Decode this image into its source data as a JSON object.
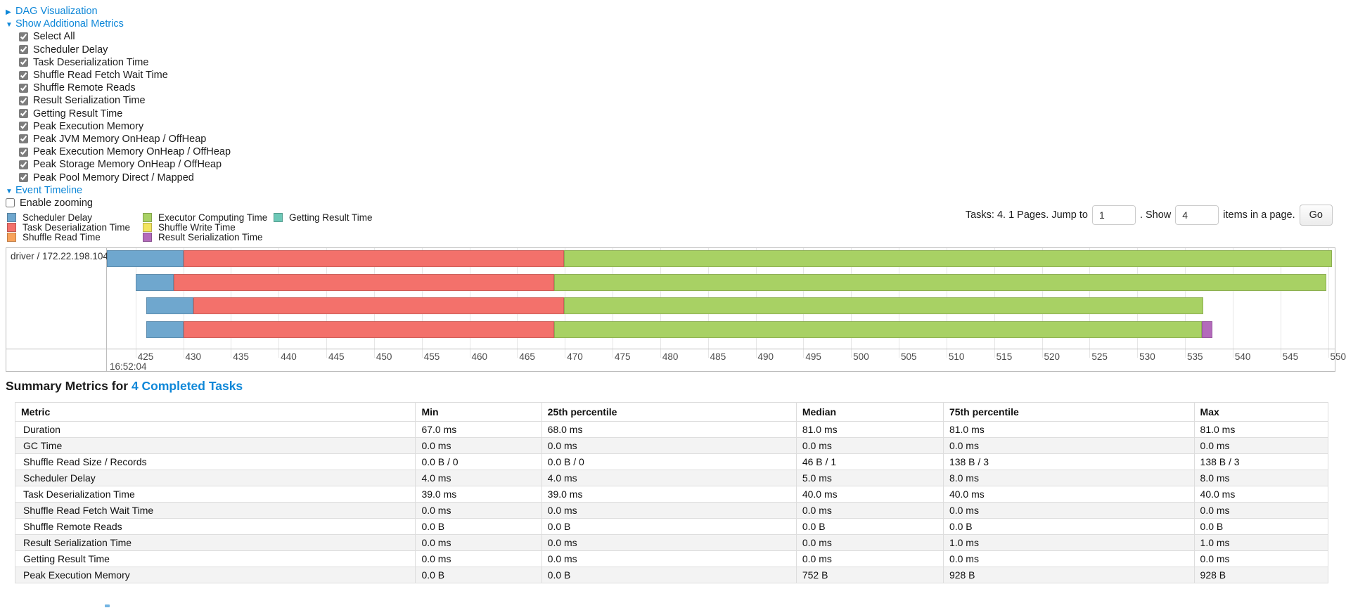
{
  "controls": {
    "dag": {
      "label": "DAG Visualization",
      "state": "collapsed"
    },
    "show_metrics": {
      "label": "Show Additional Metrics",
      "state": "expanded"
    },
    "metric_checkboxes": [
      {
        "label": "Select All",
        "checked": true
      },
      {
        "label": "Scheduler Delay",
        "checked": true
      },
      {
        "label": "Task Deserialization Time",
        "checked": true
      },
      {
        "label": "Shuffle Read Fetch Wait Time",
        "checked": true
      },
      {
        "label": "Shuffle Remote Reads",
        "checked": true
      },
      {
        "label": "Result Serialization Time",
        "checked": true
      },
      {
        "label": "Getting Result Time",
        "checked": true
      },
      {
        "label": "Peak Execution Memory",
        "checked": true
      },
      {
        "label": "Peak JVM Memory OnHeap / OffHeap",
        "checked": true
      },
      {
        "label": "Peak Execution Memory OnHeap / OffHeap",
        "checked": true
      },
      {
        "label": "Peak Storage Memory OnHeap / OffHeap",
        "checked": true
      },
      {
        "label": "Peak Pool Memory Direct / Mapped",
        "checked": true
      }
    ],
    "event_timeline": {
      "label": "Event Timeline",
      "state": "expanded"
    },
    "enable_zooming": {
      "label": "Enable zooming",
      "checked": false
    }
  },
  "legend": {
    "col1": [
      {
        "label": "Scheduler Delay",
        "color": "#6FA7CE"
      },
      {
        "label": "Task Deserialization Time",
        "color": "#F3716B"
      },
      {
        "label": "Shuffle Read Time",
        "color": "#F8A25A"
      }
    ],
    "col2": [
      {
        "label": "Executor Computing Time",
        "color": "#A8D164"
      },
      {
        "label": "Shuffle Write Time",
        "color": "#F3E55F"
      },
      {
        "label": "Result Serialization Time",
        "color": "#B36ABB"
      }
    ],
    "col3": [
      {
        "label": "Getting Result Time",
        "color": "#6DC8B7"
      }
    ]
  },
  "pagination": {
    "summary": "Tasks: 4. 1 Pages. Jump to",
    "jump_value": "1",
    "mid_label": ". Show",
    "show_value": "4",
    "suffix_label": "items in a page.",
    "go_label": "Go"
  },
  "chart_data": {
    "type": "timeline",
    "row_label": "driver / 172.22.198.104",
    "x_axis": {
      "window": [
        422.0,
        550.7
      ],
      "ticks": [
        425,
        430,
        435,
        440,
        445,
        450,
        455,
        460,
        465,
        470,
        475,
        480,
        485,
        490,
        495,
        500,
        505,
        510,
        515,
        520,
        525,
        530,
        535,
        540,
        545,
        550
      ],
      "major_label": "16:52:04",
      "units": "milliseconds within second 16:52:04"
    },
    "colors": {
      "scheduler_delay": "#6FA7CE",
      "task_deserialization": "#F3716B",
      "shuffle_read": "#F8A25A",
      "executor_computing": "#A8D164",
      "shuffle_write": "#F3E55F",
      "result_serialization": "#B36ABB",
      "getting_result": "#6DC8B7"
    },
    "tasks": [
      {
        "segments": [
          {
            "metric": "scheduler_delay",
            "start": 422.0,
            "end": 430.0
          },
          {
            "metric": "task_deserialization",
            "start": 430.0,
            "end": 469.9
          },
          {
            "metric": "executor_computing",
            "start": 469.9,
            "end": 550.4
          }
        ]
      },
      {
        "segments": [
          {
            "metric": "scheduler_delay",
            "start": 425.0,
            "end": 429.0
          },
          {
            "metric": "task_deserialization",
            "start": 429.0,
            "end": 468.9
          },
          {
            "metric": "executor_computing",
            "start": 468.9,
            "end": 549.8
          }
        ]
      },
      {
        "segments": [
          {
            "metric": "scheduler_delay",
            "start": 426.1,
            "end": 431.1
          },
          {
            "metric": "task_deserialization",
            "start": 431.1,
            "end": 469.9
          },
          {
            "metric": "executor_computing",
            "start": 469.9,
            "end": 536.9
          }
        ]
      },
      {
        "segments": [
          {
            "metric": "scheduler_delay",
            "start": 426.1,
            "end": 430.0
          },
          {
            "metric": "task_deserialization",
            "start": 430.0,
            "end": 468.9
          },
          {
            "metric": "executor_computing",
            "start": 468.9,
            "end": 536.8
          },
          {
            "metric": "result_serialization",
            "start": 536.8,
            "end": 537.9
          }
        ]
      }
    ]
  },
  "summary": {
    "title_prefix": "Summary Metrics for ",
    "title_link": "4 Completed Tasks",
    "table": {
      "headers": [
        "Metric",
        "Min",
        "25th percentile",
        "Median",
        "75th percentile",
        "Max"
      ],
      "rows": [
        [
          "Duration",
          "67.0 ms",
          "68.0 ms",
          "81.0 ms",
          "81.0 ms",
          "81.0 ms"
        ],
        [
          "GC Time",
          "0.0 ms",
          "0.0 ms",
          "0.0 ms",
          "0.0 ms",
          "0.0 ms"
        ],
        [
          "Shuffle Read Size / Records",
          "0.0 B / 0",
          "0.0 B / 0",
          "46 B / 1",
          "138 B / 3",
          "138 B / 3"
        ],
        [
          "Scheduler Delay",
          "4.0 ms",
          "4.0 ms",
          "5.0 ms",
          "8.0 ms",
          "8.0 ms"
        ],
        [
          "Task Deserialization Time",
          "39.0 ms",
          "39.0 ms",
          "40.0 ms",
          "40.0 ms",
          "40.0 ms"
        ],
        [
          "Shuffle Read Fetch Wait Time",
          "0.0 ms",
          "0.0 ms",
          "0.0 ms",
          "0.0 ms",
          "0.0 ms"
        ],
        [
          "Shuffle Remote Reads",
          "0.0 B",
          "0.0 B",
          "0.0 B",
          "0.0 B",
          "0.0 B"
        ],
        [
          "Result Serialization Time",
          "0.0 ms",
          "0.0 ms",
          "0.0 ms",
          "1.0 ms",
          "1.0 ms"
        ],
        [
          "Getting Result Time",
          "0.0 ms",
          "0.0 ms",
          "0.0 ms",
          "0.0 ms",
          "0.0 ms"
        ],
        [
          "Peak Execution Memory",
          "0.0 B",
          "0.0 B",
          "752 B",
          "928 B",
          "928 B"
        ]
      ]
    }
  }
}
